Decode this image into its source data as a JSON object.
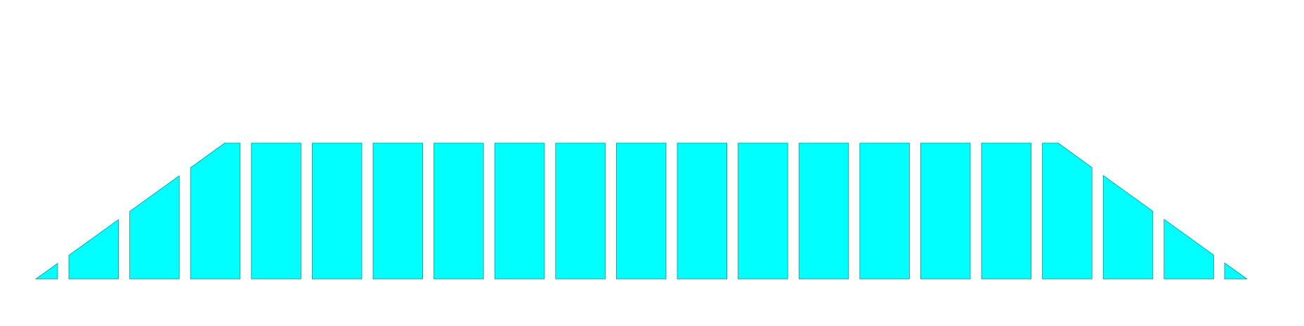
{
  "diagram": {
    "kind": "segmented-trapezoid",
    "segment_count": 21,
    "fill_color": "#00ffff",
    "stroke_color": "#2a8c8c",
    "background_color": "#ffffff"
  }
}
